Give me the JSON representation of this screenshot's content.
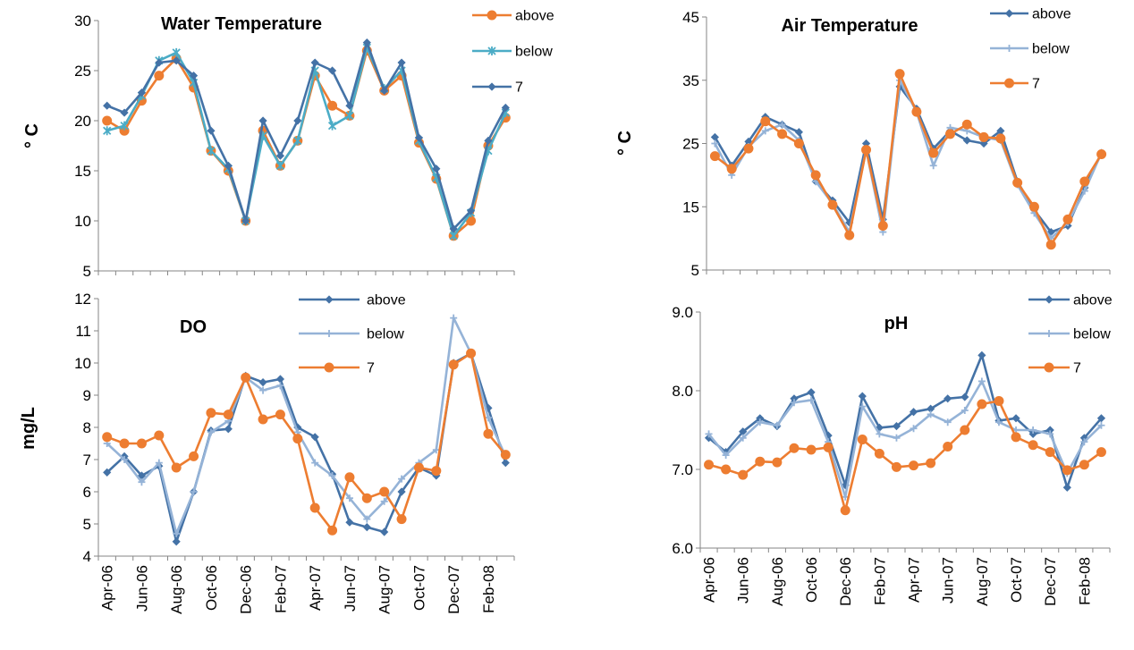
{
  "chart_data": [
    {
      "type": "line",
      "title": "Water Temperature",
      "ylabel": "° C",
      "xlabel": "",
      "ylim": [
        5,
        30
      ],
      "yticks": [
        5,
        10,
        15,
        20,
        25,
        30
      ],
      "x_tick_labels": [
        "Apr-06",
        "Jun-06",
        "Aug-06",
        "Oct-06",
        "Dec-06",
        "Feb-07",
        "Apr-07",
        "Jun-07",
        "Aug-07",
        "Oct-07",
        "Dec-07",
        "Feb-08"
      ],
      "x_tick_labels_visible": false,
      "legend_position": "top-right",
      "n_points": 24,
      "series": [
        {
          "name": "above",
          "color": "#ED7D31",
          "marker": "circle",
          "values": [
            20,
            19,
            22,
            24.5,
            26.2,
            23.3,
            17,
            15,
            10,
            19,
            15.5,
            18,
            24.5,
            21.5,
            20.5,
            27,
            23,
            24.5,
            17.8,
            14.2,
            8.5,
            10,
            17.5,
            20.3
          ]
        },
        {
          "name": "below",
          "color": "#4BACC6",
          "marker": "star",
          "values": [
            19,
            19.5,
            22.5,
            26,
            26.8,
            23.8,
            17,
            15.2,
            10,
            18.5,
            15.5,
            18,
            25,
            19.5,
            20.5,
            27.3,
            23.2,
            25,
            18,
            14.3,
            8.5,
            10.8,
            17,
            20.8
          ]
        },
        {
          "name": "7",
          "color": "#4472A6",
          "marker": "diamond",
          "values": [
            21.5,
            20.8,
            22.8,
            25.8,
            26,
            24.5,
            19,
            15.5,
            10,
            20,
            16.5,
            20,
            25.8,
            25,
            21.5,
            27.8,
            23,
            25.8,
            18.3,
            15.2,
            9.2,
            11,
            18,
            21.3
          ]
        }
      ]
    },
    {
      "type": "line",
      "title": "Air Temperature",
      "ylabel": "° C",
      "xlabel": "",
      "ylim": [
        5,
        45
      ],
      "yticks": [
        5,
        15,
        25,
        35,
        45
      ],
      "x_tick_labels": [
        "Apr-06",
        "Jun-06",
        "Aug-06",
        "Oct-06",
        "Dec-06",
        "Feb-07",
        "Apr-07",
        "Jun-07",
        "Aug-07",
        "Oct-07",
        "Dec-07",
        "Feb-08"
      ],
      "x_tick_labels_visible": false,
      "legend_position": "top-right",
      "n_points": 24,
      "series": [
        {
          "name": "above",
          "color": "#4472A6",
          "marker": "diamond",
          "values": [
            26,
            21.5,
            25.3,
            29.2,
            28,
            26.8,
            19,
            16,
            12.5,
            25,
            13,
            34,
            30.5,
            24.2,
            27,
            25.5,
            25,
            27,
            19,
            14.5,
            11,
            12,
            18,
            23.5
          ]
        },
        {
          "name": "below",
          "color": "#95B3D7",
          "marker": "plus",
          "values": [
            25,
            20,
            24.5,
            27,
            28,
            25.5,
            19,
            15.5,
            11,
            24,
            11,
            35,
            30,
            21.5,
            27.5,
            27,
            26,
            25.5,
            18.5,
            14,
            10,
            12.5,
            17.5,
            23.5
          ]
        },
        {
          "name": "7",
          "color": "#ED7D31",
          "marker": "circle",
          "values": [
            23,
            21,
            24.2,
            28.5,
            26.5,
            25,
            20,
            15.3,
            10.5,
            24,
            12,
            36,
            30,
            23.5,
            26.5,
            28,
            26,
            25.8,
            18.8,
            15,
            9,
            13,
            19,
            23.3
          ]
        }
      ]
    },
    {
      "type": "line",
      "title": "DO",
      "ylabel": "mg/L",
      "xlabel": "",
      "ylim": [
        4,
        12
      ],
      "yticks": [
        4,
        5,
        6,
        7,
        8,
        9,
        10,
        11,
        12
      ],
      "x_tick_labels": [
        "Apr-06",
        "Jun-06",
        "Aug-06",
        "Oct-06",
        "Dec-06",
        "Feb-07",
        "Apr-07",
        "Jun-07",
        "Aug-07",
        "Oct-07",
        "Dec-07",
        "Feb-08"
      ],
      "x_tick_labels_visible": true,
      "legend_position": "top-right",
      "n_points": 24,
      "series": [
        {
          "name": "above",
          "color": "#4472A6",
          "marker": "diamond",
          "values": [
            6.6,
            7.1,
            6.5,
            6.8,
            4.45,
            6,
            7.9,
            7.95,
            9.6,
            9.4,
            9.5,
            8,
            7.7,
            6.55,
            5.05,
            4.9,
            4.75,
            6,
            6.75,
            6.5,
            10,
            10.3,
            8.6,
            6.9
          ]
        },
        {
          "name": "below",
          "color": "#95B3D7",
          "marker": "plus",
          "values": [
            7.5,
            7,
            6.3,
            6.9,
            4.7,
            6,
            7.85,
            8.2,
            9.55,
            9.15,
            9.3,
            7.85,
            6.9,
            6.5,
            5.8,
            5.15,
            5.7,
            6.4,
            6.9,
            7.3,
            11.4,
            10.3,
            8.3,
            7.1
          ]
        },
        {
          "name": "7",
          "color": "#ED7D31",
          "marker": "circle",
          "values": [
            7.7,
            7.5,
            7.5,
            7.75,
            6.75,
            7.1,
            8.45,
            8.4,
            9.55,
            8.25,
            8.4,
            7.65,
            5.5,
            4.8,
            6.45,
            5.8,
            6,
            5.15,
            6.75,
            6.65,
            9.95,
            10.3,
            7.8,
            7.15
          ]
        }
      ]
    },
    {
      "type": "line",
      "title": "pH",
      "ylabel": "",
      "xlabel": "",
      "ylim": [
        6,
        9
      ],
      "yticks": [
        6.0,
        7.0,
        8.0,
        9.0
      ],
      "y_tick_decimals": 1,
      "x_tick_labels": [
        "Apr-06",
        "Jun-06",
        "Aug-06",
        "Oct-06",
        "Dec-06",
        "Feb-07",
        "Apr-07",
        "Jun-07",
        "Aug-07",
        "Oct-07",
        "Dec-07",
        "Feb-08"
      ],
      "x_tick_labels_visible": true,
      "legend_position": "top-right",
      "n_points": 24,
      "series": [
        {
          "name": "above",
          "color": "#4472A6",
          "marker": "diamond",
          "values": [
            7.4,
            7.22,
            7.48,
            7.65,
            7.55,
            7.9,
            7.98,
            7.43,
            6.8,
            7.93,
            7.53,
            7.55,
            7.73,
            7.77,
            7.9,
            7.92,
            8.45,
            7.62,
            7.65,
            7.45,
            7.5,
            6.77,
            7.4,
            7.65
          ]
        },
        {
          "name": "below",
          "color": "#95B3D7",
          "marker": "plus",
          "values": [
            7.45,
            7.18,
            7.4,
            7.6,
            7.56,
            7.85,
            7.88,
            7.35,
            6.65,
            7.8,
            7.45,
            7.4,
            7.52,
            7.7,
            7.6,
            7.75,
            8.12,
            7.6,
            7.5,
            7.5,
            7.45,
            6.95,
            7.35,
            7.56
          ]
        },
        {
          "name": "7",
          "color": "#ED7D31",
          "marker": "circle",
          "values": [
            7.06,
            7.0,
            6.93,
            7.1,
            7.09,
            7.27,
            7.25,
            7.28,
            6.48,
            7.38,
            7.2,
            7.03,
            7.05,
            7.08,
            7.29,
            7.5,
            7.83,
            7.87,
            7.41,
            7.31,
            7.22,
            6.99,
            7.06,
            7.22
          ]
        }
      ]
    }
  ]
}
